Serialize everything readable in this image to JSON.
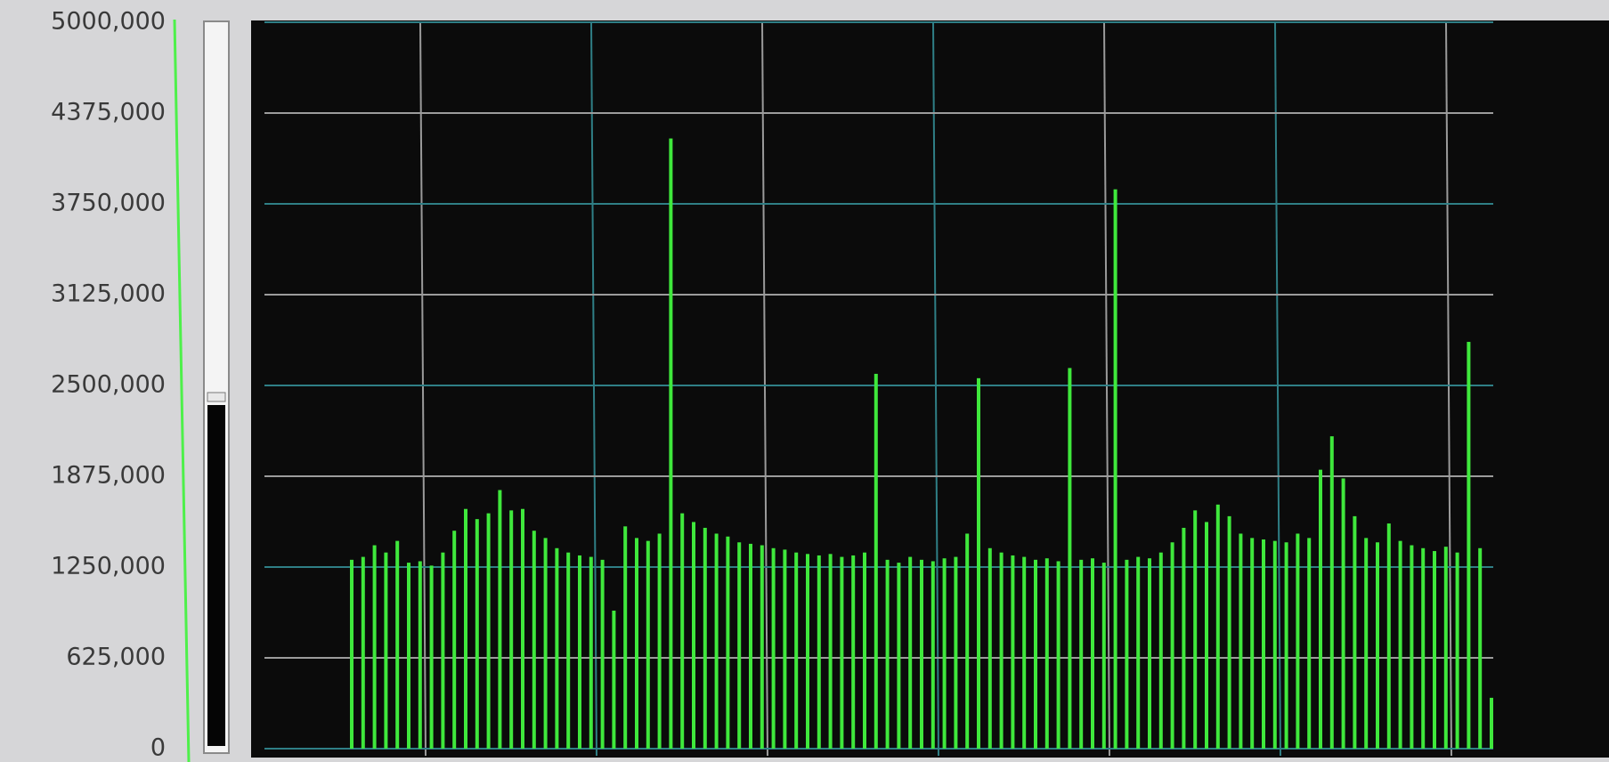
{
  "chart_data": {
    "type": "bar",
    "values": [
      1300000,
      1320000,
      1400000,
      1350000,
      1430000,
      1280000,
      1290000,
      1260000,
      1350000,
      1500000,
      1650000,
      1580000,
      1620000,
      1780000,
      1640000,
      1650000,
      1500000,
      1450000,
      1380000,
      1350000,
      1330000,
      1320000,
      1300000,
      950000,
      1530000,
      1450000,
      1430000,
      1480000,
      4200000,
      1620000,
      1560000,
      1520000,
      1480000,
      1460000,
      1420000,
      1410000,
      1400000,
      1380000,
      1370000,
      1350000,
      1340000,
      1330000,
      1340000,
      1320000,
      1330000,
      1350000,
      2580000,
      1300000,
      1280000,
      1320000,
      1300000,
      1290000,
      1310000,
      1320000,
      1480000,
      2550000,
      1380000,
      1350000,
      1330000,
      1320000,
      1300000,
      1310000,
      1290000,
      2620000,
      1300000,
      1310000,
      1280000,
      3850000,
      1300000,
      1320000,
      1310000,
      1350000,
      1420000,
      1520000,
      1640000,
      1560000,
      1680000,
      1600000,
      1480000,
      1450000,
      1440000,
      1430000,
      1420000,
      1480000,
      1450000,
      1920000,
      2150000,
      1860000,
      1600000,
      1450000,
      1420000,
      1550000,
      1430000,
      1400000,
      1380000,
      1360000,
      1390000,
      1350000,
      2800000,
      1380000,
      350000
    ],
    "color": "#3fe83c",
    "ylim": [
      0,
      5000000
    ],
    "yticks": [
      {
        "value": 0,
        "label": "0"
      },
      {
        "value": 625000,
        "label": "625,000"
      },
      {
        "value": 1250000,
        "label": "1250,000"
      },
      {
        "value": 1875000,
        "label": "1875,000"
      },
      {
        "value": 2500000,
        "label": "2500,000"
      },
      {
        "value": 3125000,
        "label": "3125,000"
      },
      {
        "value": 3750000,
        "label": "3750,000"
      },
      {
        "value": 4375000,
        "label": "4375,000"
      },
      {
        "value": 5000000,
        "label": "5000,000"
      }
    ],
    "grid": true
  }
}
